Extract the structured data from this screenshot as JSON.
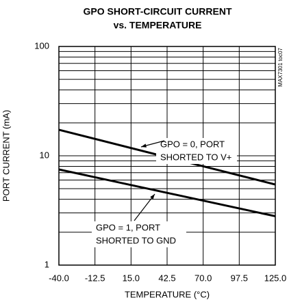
{
  "chart_data": {
    "type": "line",
    "title": [
      "GPO SHORT-CIRCUIT CURRENT",
      "vs. TEMPERATURE"
    ],
    "side_note": "MAX7301 toc07",
    "x_label": "TEMPERATURE (°C)",
    "y_label": "PORT CURRENT (mA)",
    "x": [
      -40,
      125
    ],
    "series": [
      {
        "name": "GPO = 0, PORT SHORTED TO V+",
        "color": "#000000",
        "values": [
          17.3,
          5.46
        ]
      },
      {
        "name": "GPO = 1, PORT SHORTED TO GND",
        "color": "#000000",
        "values": [
          7.5,
          2.8
        ]
      }
    ],
    "annotations": [
      {
        "lines": [
          "GPO = 0, PORT",
          "SHORTED TO V+"
        ]
      },
      {
        "lines": [
          "GPO = 1, PORT",
          "SHORTED TO GND"
        ]
      }
    ],
    "xlim": [
      -40,
      125
    ],
    "xticks": [
      {
        "value": -40,
        "label": "-40.0"
      },
      -12.5,
      {
        "value": 15,
        "label": "15.0"
      },
      42.5,
      {
        "value": 70,
        "label": "70.0"
      },
      97.5,
      {
        "value": 125,
        "label": "125.0"
      }
    ],
    "ylim": [
      1,
      100
    ],
    "yticks": [
      1,
      10,
      100
    ],
    "yminorticks": [
      2,
      3,
      4,
      5,
      6,
      7,
      8,
      9,
      20,
      30,
      40,
      50,
      60,
      70,
      80,
      90
    ],
    "log_y": true,
    "grid": true
  }
}
